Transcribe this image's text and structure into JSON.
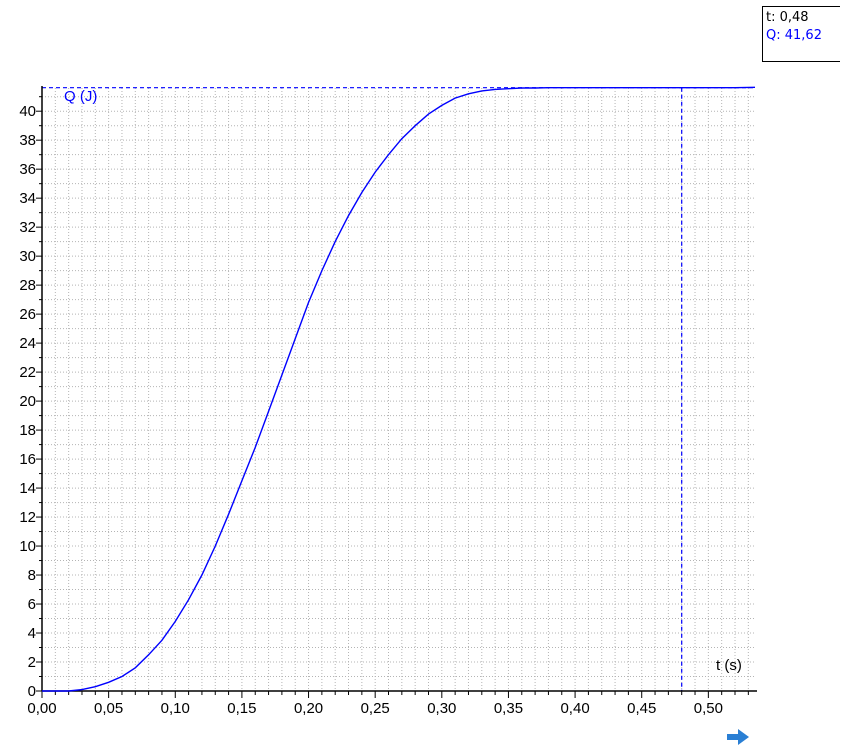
{
  "readout": {
    "t_label": "t: 0,48",
    "q_label": "Q: 41,62"
  },
  "colors": {
    "curve": "#0000ff",
    "grid": "#b4b4b4",
    "axis": "#000000",
    "cursor": "#0000ff",
    "arrow": "#2a7fd4"
  },
  "next_icon": "arrow-right-icon",
  "chart_data": {
    "type": "line",
    "title": "",
    "xlabel": "t (s)",
    "ylabel": "Q (J)",
    "xlim": [
      0,
      0.535
    ],
    "ylim": [
      0,
      41.6
    ],
    "grid": true,
    "x_ticks": [
      0,
      0.05,
      0.1,
      0.15,
      0.2,
      0.25,
      0.3,
      0.35,
      0.4,
      0.45,
      0.5
    ],
    "x_tick_labels": [
      "0,00",
      "0,05",
      "0,10",
      "0,15",
      "0,20",
      "0,25",
      "0,30",
      "0,35",
      "0,40",
      "0,45",
      "0,50"
    ],
    "y_ticks": [
      0,
      2,
      4,
      6,
      8,
      10,
      12,
      14,
      16,
      18,
      20,
      22,
      24,
      26,
      28,
      30,
      32,
      34,
      36,
      38,
      40
    ],
    "y_tick_labels": [
      "0",
      "2",
      "4",
      "6",
      "8",
      "10",
      "12",
      "14",
      "16",
      "18",
      "20",
      "22",
      "24",
      "26",
      "28",
      "30",
      "32",
      "34",
      "36",
      "38",
      "40"
    ],
    "cursor": {
      "t": 0.48,
      "Q": 41.62
    },
    "series": [
      {
        "x": [
          0.0,
          0.02,
          0.03,
          0.04,
          0.05,
          0.06,
          0.07,
          0.08,
          0.09,
          0.1,
          0.11,
          0.12,
          0.13,
          0.14,
          0.15,
          0.16,
          0.17,
          0.18,
          0.19,
          0.2,
          0.21,
          0.22,
          0.23,
          0.24,
          0.25,
          0.26,
          0.27,
          0.28,
          0.29,
          0.3,
          0.31,
          0.32,
          0.33,
          0.34,
          0.35,
          0.36,
          0.37,
          0.38,
          0.39,
          0.4,
          0.42,
          0.45,
          0.48,
          0.5,
          0.52,
          0.535
        ],
        "values": [
          0,
          0,
          0.1,
          0.3,
          0.6,
          1.0,
          1.6,
          2.5,
          3.5,
          4.8,
          6.3,
          8.0,
          10.0,
          12.2,
          14.5,
          16.8,
          19.3,
          21.8,
          24.3,
          26.8,
          29.0,
          31.0,
          32.8,
          34.4,
          35.8,
          37.0,
          38.1,
          39.0,
          39.8,
          40.4,
          40.9,
          41.2,
          41.4,
          41.5,
          41.55,
          41.6,
          41.6,
          41.62,
          41.62,
          41.62,
          41.62,
          41.62,
          41.62,
          41.62,
          41.62,
          41.65
        ]
      }
    ]
  }
}
